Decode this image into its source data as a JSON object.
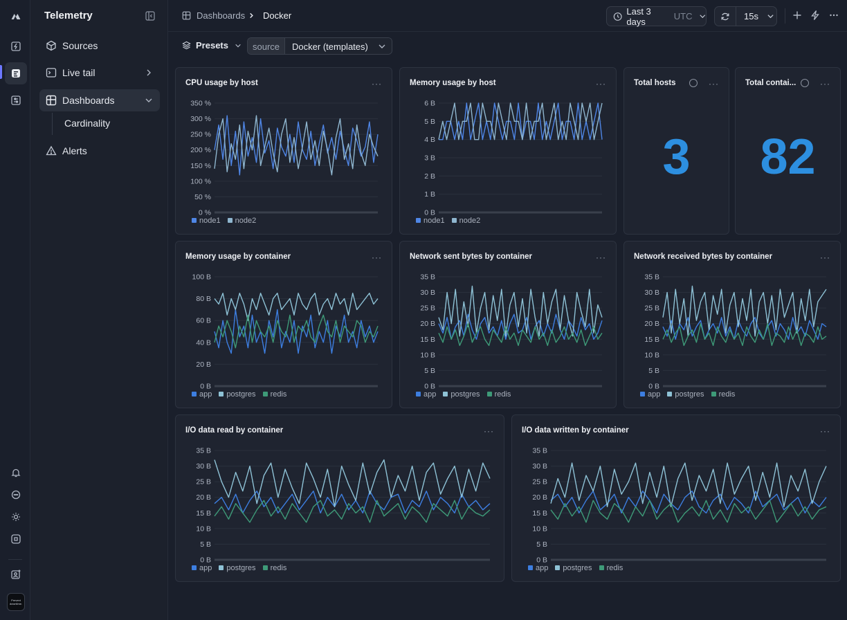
{
  "app": {
    "title": "Telemetry"
  },
  "sidebar": {
    "items": [
      {
        "label": "Sources"
      },
      {
        "label": "Live tail"
      },
      {
        "label": "Dashboards"
      },
      {
        "label": "Alerts"
      }
    ],
    "sub_item": "Cardinality"
  },
  "breadcrumb": {
    "parent": "Dashboards",
    "current": "Docker"
  },
  "time_range": {
    "label": "Last 3 days",
    "tz": "UTC"
  },
  "refresh": {
    "interval": "15s"
  },
  "toolbar": {
    "presets_label": "Presets",
    "source_key": "source",
    "source_value": "Docker (templates)"
  },
  "avatar_text": "Prevent downtime.",
  "colors": {
    "app": "#3d7ee0",
    "postgres": "#7ab8cf",
    "redis": "#3e9a78",
    "node1": "#4f86e6",
    "node2": "#9ab0d0",
    "accent": "#2d8fe0"
  },
  "panels": {
    "cpu": {
      "title": "CPU usage by host"
    },
    "mem_host": {
      "title": "Memory usage by host"
    },
    "total_hosts": {
      "title": "Total hosts",
      "value": "3"
    },
    "total_containers": {
      "title": "Total contai...",
      "value": "82"
    },
    "mem_container": {
      "title": "Memory usage by container"
    },
    "net_sent": {
      "title": "Network sent bytes by container"
    },
    "net_recv": {
      "title": "Network received bytes by container"
    },
    "io_read": {
      "title": "I/O data read by container"
    },
    "io_write": {
      "title": "I/O data written by container"
    }
  },
  "chart_data": [
    {
      "id": "cpu",
      "type": "line",
      "title": "CPU usage by host",
      "y_ticks": [
        "0 %",
        "50 %",
        "100 %",
        "150 %",
        "200 %",
        "250 %",
        "300 %",
        "350 %"
      ],
      "ylim": [
        0,
        350
      ],
      "series": [
        {
          "name": "node1",
          "color": "#4f86e6",
          "values": [
            200,
            280,
            170,
            310,
            150,
            260,
            120,
            290,
            180,
            240,
            160,
            300,
            190,
            230,
            140,
            270,
            210,
            180,
            250,
            160,
            290,
            200,
            170,
            260,
            150,
            220,
            280,
            190,
            240,
            170,
            260,
            200,
            150,
            270,
            230,
            180,
            210,
            290,
            160,
            250
          ]
        },
        {
          "name": "node2",
          "color": "#8fb6cf",
          "values": [
            140,
            250,
            300,
            130,
            220,
            170,
            280,
            140,
            260,
            200,
            310,
            150,
            210,
            270,
            190,
            130,
            250,
            300,
            160,
            240,
            140,
            210,
            290,
            170,
            230,
            150,
            260,
            200,
            120,
            240,
            300,
            170,
            220,
            140,
            280,
            190,
            150,
            250,
            210,
            180
          ]
        }
      ],
      "legend": [
        "node1",
        "node2"
      ]
    },
    {
      "id": "mem_host",
      "type": "line",
      "title": "Memory usage by host",
      "y_ticks": [
        "0 B",
        "1 B",
        "2 B",
        "3 B",
        "4 B",
        "5 B",
        "6 B"
      ],
      "ylim": [
        0,
        6
      ],
      "series": [
        {
          "name": "node1",
          "color": "#4f86e6",
          "values": [
            4,
            4,
            5,
            5,
            4,
            5,
            4,
            6,
            4,
            5,
            6,
            4,
            5,
            4,
            6,
            5,
            4,
            5,
            5,
            4,
            6,
            4,
            5,
            5,
            4,
            6,
            4,
            5,
            4,
            5,
            6,
            4,
            5,
            5,
            4,
            6,
            4,
            5,
            4,
            5,
            6,
            4
          ]
        },
        {
          "name": "node2",
          "color": "#8fb6cf",
          "values": [
            4,
            5,
            4,
            5,
            6,
            4,
            5,
            5,
            6,
            4,
            4,
            6,
            5,
            5,
            4,
            6,
            5,
            4,
            6,
            5,
            5,
            4,
            6,
            4,
            5,
            5,
            6,
            4,
            5,
            6,
            4,
            5,
            4,
            6,
            5,
            4,
            6,
            5,
            6,
            4,
            5,
            6
          ]
        }
      ],
      "legend": [
        "node1",
        "node2"
      ]
    },
    {
      "id": "mem_container",
      "type": "line",
      "title": "Memory usage by container",
      "y_ticks": [
        "0 B",
        "20 B",
        "40 B",
        "60 B",
        "80 B",
        "100 B"
      ],
      "ylim": [
        0,
        100
      ],
      "series": [
        {
          "name": "app",
          "color": "#3d7ee0",
          "values": [
            50,
            35,
            60,
            40,
            30,
            70,
            45,
            55,
            35,
            65,
            40,
            50,
            30,
            60,
            45,
            70,
            35,
            50,
            40,
            60,
            30,
            55,
            45,
            65,
            35,
            50,
            40,
            60,
            30,
            55,
            45,
            65,
            40,
            50,
            35,
            60,
            45,
            55,
            40,
            50
          ]
        },
        {
          "name": "postgres",
          "color": "#8ec2d6",
          "values": [
            80,
            75,
            85,
            65,
            80,
            70,
            85,
            75,
            60,
            80,
            70,
            85,
            75,
            65,
            80,
            85,
            70,
            75,
            80,
            65,
            85,
            75,
            70,
            80,
            85,
            65,
            75,
            80,
            70,
            85,
            75,
            80,
            65,
            85,
            70,
            75,
            80,
            85,
            75,
            80
          ]
        },
        {
          "name": "redis",
          "color": "#3e9a78",
          "values": [
            40,
            55,
            45,
            60,
            50,
            35,
            55,
            45,
            65,
            40,
            60,
            50,
            45,
            55,
            40,
            60,
            50,
            45,
            65,
            40,
            55,
            50,
            60,
            45,
            40,
            55,
            65,
            50,
            45,
            60,
            40,
            55,
            50,
            45,
            60,
            55,
            40,
            50,
            45,
            55
          ]
        }
      ],
      "legend": [
        "app",
        "postgres",
        "redis"
      ]
    },
    {
      "id": "net_sent",
      "type": "line",
      "title": "Network sent bytes by container",
      "y_ticks": [
        "0 B",
        "5 B",
        "10 B",
        "15 B",
        "20 B",
        "25 B",
        "30 B",
        "35 B"
      ],
      "ylim": [
        0,
        35
      ],
      "series": [
        {
          "name": "app",
          "color": "#3d7ee0",
          "values": [
            20,
            17,
            22,
            15,
            19,
            21,
            16,
            23,
            18,
            15,
            20,
            22,
            17,
            19,
            16,
            21,
            15,
            20,
            23,
            17,
            18,
            22,
            15,
            19,
            21,
            16,
            20,
            17,
            23,
            18,
            15,
            21,
            19,
            16,
            22,
            18,
            20,
            15,
            17,
            21
          ]
        },
        {
          "name": "postgres",
          "color": "#8ec2d6",
          "values": [
            22,
            18,
            30,
            20,
            31,
            16,
            27,
            19,
            32,
            17,
            25,
            30,
            18,
            29,
            21,
            31,
            16,
            26,
            30,
            19,
            28,
            17,
            31,
            22,
            16,
            30,
            20,
            27,
            31,
            18,
            29,
            21,
            16,
            30,
            24,
            19,
            31,
            17,
            26,
            22
          ]
        },
        {
          "name": "redis",
          "color": "#3e9a78",
          "values": [
            17,
            14,
            19,
            15,
            18,
            13,
            16,
            20,
            14,
            17,
            19,
            15,
            13,
            18,
            16,
            14,
            19,
            15,
            17,
            13,
            18,
            16,
            14,
            19,
            15,
            17,
            13,
            18,
            14,
            16,
            19,
            15,
            17,
            14,
            18,
            13,
            16,
            19,
            15,
            17
          ]
        }
      ],
      "legend": [
        "app",
        "postgres",
        "redis"
      ]
    },
    {
      "id": "net_recv",
      "type": "line",
      "title": "Network received bytes by container",
      "y_ticks": [
        "0 B",
        "5 B",
        "10 B",
        "15 B",
        "20 B",
        "25 B",
        "30 B",
        "35 B"
      ],
      "ylim": [
        0,
        35
      ],
      "series": [
        {
          "name": "app",
          "color": "#3d7ee0",
          "values": [
            19,
            16,
            21,
            15,
            20,
            18,
            22,
            16,
            19,
            21,
            15,
            18,
            20,
            17,
            22,
            16,
            19,
            15,
            21,
            18,
            16,
            20,
            22,
            17,
            15,
            19,
            21,
            16,
            20,
            18,
            15,
            22,
            17,
            19,
            16,
            21,
            18,
            15,
            20,
            19
          ]
        },
        {
          "name": "postgres",
          "color": "#8ec2d6",
          "values": [
            22,
            30,
            17,
            31,
            20,
            28,
            16,
            32,
            21,
            27,
            30,
            18,
            29,
            23,
            31,
            17,
            26,
            30,
            19,
            28,
            21,
            31,
            16,
            27,
            30,
            20,
            29,
            18,
            31,
            22,
            26,
            30,
            17,
            28,
            21,
            31,
            19,
            27,
            29,
            31
          ]
        },
        {
          "name": "redis",
          "color": "#3e9a78",
          "values": [
            15,
            18,
            14,
            17,
            19,
            13,
            16,
            18,
            14,
            20,
            15,
            17,
            13,
            19,
            16,
            14,
            18,
            15,
            17,
            13,
            19,
            16,
            14,
            18,
            15,
            20,
            13,
            17,
            16,
            14,
            19,
            15,
            18,
            13,
            17,
            16,
            14,
            19,
            15,
            16
          ]
        }
      ],
      "legend": [
        "app",
        "postgres",
        "redis"
      ]
    },
    {
      "id": "io_read",
      "type": "line",
      "title": "I/O data read by container",
      "y_ticks": [
        "0 B",
        "5 B",
        "10 B",
        "15 B",
        "20 B",
        "25 B",
        "30 B",
        "35 B"
      ],
      "ylim": [
        0,
        35
      ],
      "series": [
        {
          "name": "app",
          "color": "#3d7ee0",
          "values": [
            18,
            20,
            16,
            21,
            15,
            19,
            22,
            17,
            20,
            15,
            18,
            21,
            16,
            19,
            22,
            15,
            20,
            17,
            21,
            16,
            19,
            15,
            22,
            18,
            16,
            20,
            21,
            15,
            19,
            17,
            22,
            16,
            20,
            18,
            15,
            21,
            17,
            19,
            16,
            18
          ]
        },
        {
          "name": "postgres",
          "color": "#8ec2d6",
          "values": [
            32,
            25,
            20,
            28,
            22,
            30,
            18,
            27,
            31,
            20,
            29,
            23,
            18,
            31,
            26,
            20,
            29,
            17,
            30,
            24,
            19,
            31,
            21,
            28,
            32,
            20,
            27,
            22,
            30,
            19,
            28,
            31,
            21,
            26,
            30,
            20,
            29,
            22,
            31,
            26
          ]
        },
        {
          "name": "redis",
          "color": "#3e9a78",
          "values": [
            14,
            17,
            13,
            18,
            15,
            12,
            16,
            19,
            14,
            17,
            13,
            18,
            15,
            12,
            17,
            19,
            14,
            16,
            13,
            18,
            15,
            17,
            12,
            19,
            14,
            16,
            18,
            13,
            17,
            15,
            12,
            18,
            16,
            14,
            19,
            13,
            17,
            15,
            14,
            16
          ]
        }
      ],
      "legend": [
        "app",
        "postgres",
        "redis"
      ]
    },
    {
      "id": "io_write",
      "type": "line",
      "title": "I/O data written by container",
      "y_ticks": [
        "0 B",
        "5 B",
        "10 B",
        "15 B",
        "20 B",
        "25 B",
        "30 B",
        "35 B"
      ],
      "ylim": [
        0,
        35
      ],
      "series": [
        {
          "name": "app",
          "color": "#3d7ee0",
          "values": [
            19,
            21,
            17,
            20,
            15,
            19,
            22,
            16,
            18,
            21,
            15,
            20,
            17,
            22,
            19,
            15,
            21,
            18,
            16,
            20,
            22,
            17,
            15,
            19,
            21,
            16,
            20,
            18,
            15,
            22,
            17,
            19,
            21,
            16,
            18,
            20,
            15,
            19,
            17,
            20
          ]
        },
        {
          "name": "postgres",
          "color": "#8ec2d6",
          "values": [
            18,
            26,
            20,
            31,
            19,
            27,
            22,
            30,
            17,
            29,
            21,
            25,
            31,
            18,
            28,
            20,
            30,
            17,
            26,
            31,
            19,
            27,
            22,
            29,
            18,
            31,
            21,
            26,
            30,
            19,
            28,
            20,
            31,
            17,
            27,
            22,
            29,
            18,
            25,
            30
          ]
        },
        {
          "name": "redis",
          "color": "#3e9a78",
          "values": [
            16,
            13,
            18,
            14,
            17,
            12,
            19,
            15,
            13,
            18,
            16,
            12,
            17,
            14,
            19,
            13,
            16,
            18,
            12,
            15,
            17,
            14,
            19,
            13,
            16,
            12,
            18,
            15,
            17,
            13,
            16,
            19,
            12,
            15,
            18,
            14,
            17,
            13,
            16,
            17
          ]
        }
      ],
      "legend": [
        "app",
        "postgres",
        "redis"
      ]
    }
  ]
}
